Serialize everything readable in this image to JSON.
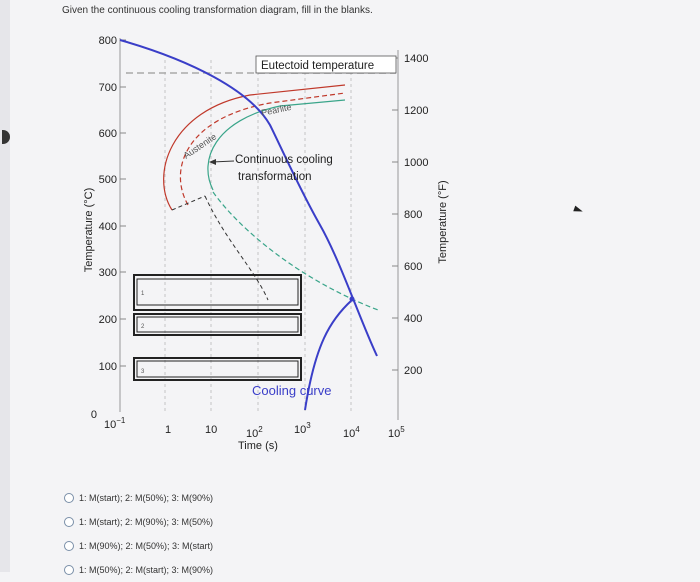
{
  "question": "Given the continuous cooling transformation diagram, fill in the blanks.",
  "diagram": {
    "y_left_label": "Temperature (°C)",
    "y_left_ticks": [
      "800",
      "700",
      "600",
      "500",
      "400",
      "300",
      "200",
      "100",
      "0"
    ],
    "y_right_label": "Temperature (°F)",
    "y_right_ticks": [
      "1400",
      "1200",
      "1000",
      "800",
      "600",
      "400",
      "200"
    ],
    "x_label": "Time (s)",
    "x_ticks": [
      {
        "base": "10",
        "exp": "−1"
      },
      {
        "base": "1",
        "exp": ""
      },
      {
        "base": "10",
        "exp": ""
      },
      {
        "base": "10",
        "exp": "2"
      },
      {
        "base": "10",
        "exp": "3"
      },
      {
        "base": "10",
        "exp": "4"
      },
      {
        "base": "10",
        "exp": "5"
      }
    ],
    "eutectoid_label": "Eutectoid temperature",
    "pearlite_label": "Pearlite",
    "austenite_label": "Austenite",
    "cct_label_line1": "Continuous cooling",
    "cct_label_line2": "transformation",
    "cooling_curve_label": "Cooling curve",
    "blank_numbers": [
      "1",
      "2",
      "3"
    ]
  },
  "options": [
    "1: M(start); 2: M(50%); 3: M(90%)",
    "1: M(start); 2: M(90%); 3: M(50%)",
    "1: M(90%); 2: M(50%); 3: M(start)",
    "1: M(50%); 2: M(start); 3: M(90%)"
  ],
  "colors": {
    "cooling_curve": "#3a3ec8",
    "pearlite_curve": "#c0392b",
    "green_curve": "#3aa58a",
    "eutectoid_dash": "#a9a9a9"
  }
}
